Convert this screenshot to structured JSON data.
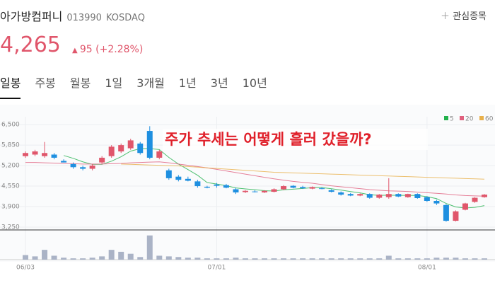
{
  "header": {
    "name": "아가방컴퍼니",
    "code": "013990",
    "market": "KOSDAQ",
    "favorite": "관심종목",
    "price": "4,265",
    "change": "95",
    "change_pct": "(+2.28%)"
  },
  "tabs": [
    "일봉",
    "주봉",
    "월봉",
    "1일",
    "3개월",
    "1년",
    "3년",
    "10년"
  ],
  "chart_data": {
    "type": "candlestick",
    "annotation": "주가 추세는 어떻게 흘러 갔을까?",
    "categories": [
      "06/03",
      null,
      null,
      null,
      null,
      null,
      null,
      null,
      null,
      null,
      null,
      null,
      null,
      null,
      null,
      null,
      null,
      null,
      null,
      null,
      "07/01",
      null,
      null,
      null,
      null,
      null,
      null,
      null,
      null,
      null,
      null,
      null,
      null,
      null,
      null,
      null,
      null,
      null,
      null,
      null,
      null,
      null,
      "08/01",
      null,
      null,
      null,
      null,
      null,
      null
    ],
    "open": [
      5500,
      5550,
      5500,
      5550,
      5350,
      5250,
      5150,
      5100,
      5300,
      5500,
      5650,
      5750,
      5900,
      6300,
      5450,
      5050,
      4850,
      4780,
      4700,
      4530,
      4600,
      4580,
      4450,
      4360,
      4380,
      4350,
      4370,
      4450,
      4560,
      4520,
      4470,
      4480,
      4420,
      4350,
      4300,
      4250,
      4300,
      4180,
      4200,
      4300,
      4200,
      4300,
      4200,
      4080,
      3950,
      3450,
      3800,
      4050,
      4200
    ],
    "high": [
      5650,
      5700,
      5950,
      5600,
      5400,
      5300,
      5200,
      5250,
      5500,
      5850,
      5900,
      6050,
      5950,
      6450,
      5700,
      5100,
      4900,
      4850,
      4750,
      4560,
      4650,
      4620,
      4500,
      4420,
      4420,
      4420,
      4480,
      4580,
      4580,
      4560,
      4540,
      4520,
      4450,
      4380,
      4330,
      4320,
      4320,
      4300,
      4800,
      4320,
      4310,
      4320,
      4230,
      4120,
      3980,
      3780,
      4020,
      4200,
      4300
    ],
    "low": [
      5450,
      5500,
      5450,
      5400,
      5300,
      5100,
      5050,
      5050,
      5250,
      5450,
      5600,
      5700,
      5550,
      5400,
      5400,
      4750,
      4700,
      4700,
      4500,
      4480,
      4500,
      4480,
      4300,
      4330,
      4350,
      4330,
      4350,
      4420,
      4480,
      4460,
      4450,
      4450,
      4350,
      4250,
      4230,
      4230,
      4150,
      4150,
      4150,
      4200,
      4180,
      4150,
      4050,
      3950,
      3420,
      3430,
      3780,
      4020,
      4180
    ],
    "close": [
      5600,
      5650,
      5600,
      5450,
      5300,
      5150,
      5100,
      5200,
      5450,
      5800,
      5850,
      6000,
      5600,
      5450,
      5650,
      4800,
      4750,
      4720,
      4550,
      4500,
      4560,
      4500,
      4350,
      4400,
      4370,
      4400,
      4450,
      4550,
      4500,
      4480,
      4520,
      4470,
      4370,
      4280,
      4250,
      4300,
      4180,
      4280,
      4300,
      4220,
      4300,
      4170,
      4080,
      4000,
      3450,
      3750,
      4000,
      4180,
      4280
    ],
    "volume": [
      7,
      5,
      15,
      6,
      3,
      2,
      2,
      3,
      5,
      15,
      12,
      9,
      4,
      37,
      6,
      5,
      4,
      3,
      3,
      2,
      2,
      2,
      3,
      2,
      2,
      2,
      2,
      2,
      2,
      2,
      2,
      2,
      2,
      2,
      2,
      2,
      2,
      2,
      6,
      2,
      2,
      2,
      2,
      3,
      3,
      3,
      2,
      2,
      2
    ],
    "vlim": [
      0,
      40
    ],
    "series": [
      {
        "name": "5",
        "color": "#22b14c",
        "values": [
          null,
          null,
          null,
          null,
          5520,
          5430,
          5320,
          5240,
          5240,
          5340,
          5480,
          5660,
          5740,
          5740,
          5710,
          5460,
          5250,
          5074,
          4894,
          4664,
          4616,
          4566,
          4492,
          4462,
          4436,
          4404,
          4394,
          4434,
          4454,
          4476,
          4500,
          4504,
          4468,
          4424,
          4378,
          4334,
          4276,
          4258,
          4262,
          4256,
          4256,
          4254,
          4214,
          4154,
          4000,
          3890,
          3856,
          3876,
          3932
        ]
      },
      {
        "name": "20",
        "color": "#e0607e",
        "values": [
          5300,
          5300,
          5290,
          5280,
          5270,
          5260,
          5250,
          5250,
          5250,
          5260,
          5270,
          5290,
          5300,
          5310,
          5320,
          5290,
          5250,
          5210,
          5170,
          5130,
          5080,
          5030,
          4980,
          4930,
          4880,
          4830,
          4780,
          4740,
          4700,
          4670,
          4640,
          4600,
          4560,
          4530,
          4500,
          4470,
          4440,
          4420,
          4400,
          4390,
          4380,
          4360,
          4340,
          4320,
          4300,
          4270,
          4250,
          4240,
          4230
        ]
      },
      {
        "name": "60",
        "color": "#e8b04a",
        "values": [
          null,
          null,
          null,
          null,
          null,
          null,
          null,
          null,
          null,
          null,
          5250,
          5240,
          5230,
          5220,
          5210,
          5200,
          5190,
          5170,
          5150,
          5130,
          5110,
          5090,
          5070,
          5050,
          5030,
          5010,
          4990,
          4980,
          4970,
          4960,
          4950,
          4940,
          4930,
          4920,
          4910,
          4900,
          4890,
          4880,
          4870,
          4860,
          4850,
          4840,
          4830,
          4820,
          4810,
          4800,
          4790,
          4780,
          4770
        ]
      }
    ],
    "up_color": "#e0566b",
    "down_color": "#1e8fe0",
    "volume_color": "#aab3c6",
    "ylim": [
      3160,
      6750
    ],
    "yticks": [
      {
        "value": 3250,
        "label": "3,250"
      },
      {
        "value": 3900,
        "label": "3,900"
      },
      {
        "value": 4550,
        "label": "4,550"
      },
      {
        "value": 5200,
        "label": "5,200"
      },
      {
        "value": 5850,
        "label": "5,850"
      },
      {
        "value": 6500,
        "label": "6,500"
      }
    ],
    "grid": true,
    "legend": "top-right"
  }
}
